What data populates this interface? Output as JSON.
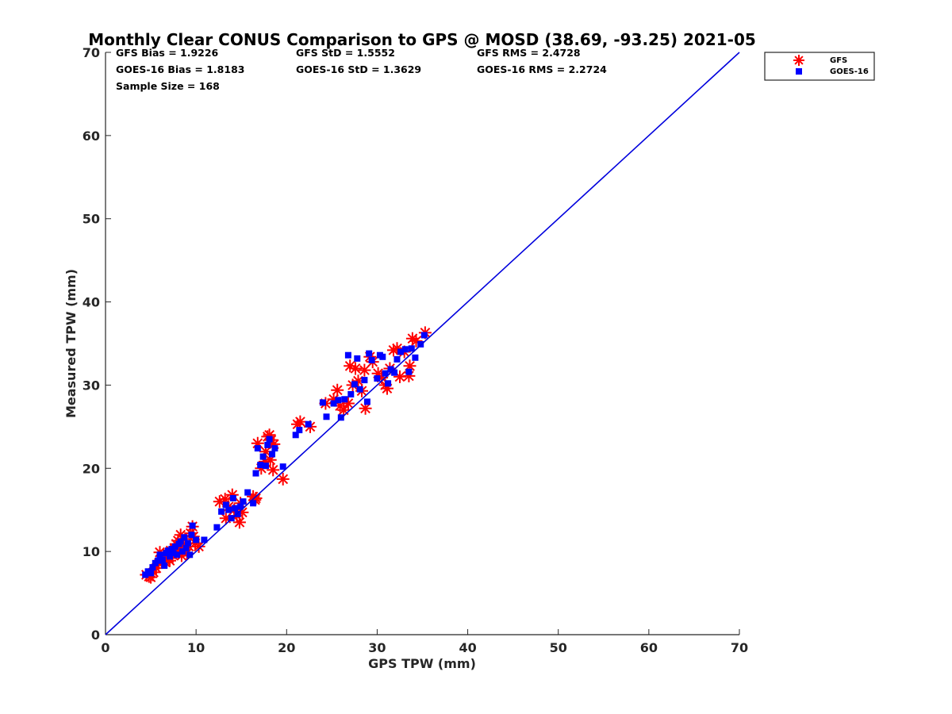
{
  "chart_data": {
    "type": "scatter",
    "title": "Monthly Clear CONUS Comparison to GPS @ MOSD (38.69, -93.25) 2021-05",
    "xlabel": "GPS TPW (mm)",
    "ylabel": "Measured TPW (mm)",
    "xlim": [
      0,
      70
    ],
    "ylim": [
      0,
      70
    ],
    "xticks": [
      "0",
      "10",
      "20",
      "30",
      "40",
      "50",
      "60",
      "70"
    ],
    "yticks": [
      "0",
      "10",
      "20",
      "30",
      "40",
      "50",
      "60",
      "70"
    ],
    "grid": false,
    "legend_position": "top-right outside",
    "stats": [
      [
        "GFS Bias = 1.9226",
        "GFS StD = 1.5552",
        "GFS RMS = 2.4728"
      ],
      [
        "GOES-16 Bias = 1.8183",
        "GOES-16 StD = 1.3629",
        "GOES-16 RMS = 2.2724"
      ],
      [
        "Sample Size = 168"
      ]
    ],
    "reference_line": {
      "x": [
        0,
        70
      ],
      "y": [
        0,
        70
      ],
      "color": "#0000dd"
    },
    "series": [
      {
        "name": "GFS",
        "marker": "asterisk",
        "color": "#ff0000",
        "points": [
          [
            4.5,
            7.2
          ],
          [
            4.8,
            7.0
          ],
          [
            5.0,
            6.9
          ],
          [
            5.3,
            7.5
          ],
          [
            5.6,
            8.0
          ],
          [
            5.9,
            8.6
          ],
          [
            6.2,
            9.1
          ],
          [
            6.4,
            9.5
          ],
          [
            6.6,
            8.7
          ],
          [
            6.8,
            9.8
          ],
          [
            7.0,
            9.2
          ],
          [
            7.2,
            10.1
          ],
          [
            7.4,
            9.6
          ],
          [
            7.6,
            10.4
          ],
          [
            7.8,
            10.9
          ],
          [
            8.0,
            11.3
          ],
          [
            8.2,
            10.2
          ],
          [
            8.4,
            9.5
          ],
          [
            8.6,
            10.8
          ],
          [
            8.8,
            11.5
          ],
          [
            9.0,
            9.8
          ],
          [
            9.2,
            10.6
          ],
          [
            9.4,
            12.2
          ],
          [
            9.6,
            13.0
          ],
          [
            9.9,
            11.0
          ],
          [
            10.3,
            10.6
          ],
          [
            7.1,
            8.9
          ],
          [
            6.0,
            9.9
          ],
          [
            8.3,
            12.0
          ],
          [
            9.7,
            11.8
          ],
          [
            12.6,
            16.0
          ],
          [
            13.2,
            16.3
          ],
          [
            13.6,
            15.4
          ],
          [
            14.0,
            16.8
          ],
          [
            14.2,
            15.0
          ],
          [
            14.5,
            14.3
          ],
          [
            14.8,
            13.5
          ],
          [
            15.1,
            14.7
          ],
          [
            13.3,
            14.0
          ],
          [
            14.9,
            15.8
          ],
          [
            16.3,
            16.6
          ],
          [
            16.6,
            16.4
          ],
          [
            16.5,
            16.2
          ],
          [
            16.8,
            23.0
          ],
          [
            17.2,
            20.0
          ],
          [
            17.6,
            20.8
          ],
          [
            17.9,
            23.8
          ],
          [
            18.1,
            24.0
          ],
          [
            18.3,
            23.4
          ],
          [
            18.6,
            22.9
          ],
          [
            18.2,
            21.0
          ],
          [
            18.5,
            19.8
          ],
          [
            19.6,
            18.7
          ],
          [
            17.7,
            22.0
          ],
          [
            21.2,
            25.3
          ],
          [
            21.5,
            25.6
          ],
          [
            22.6,
            25.0
          ],
          [
            24.3,
            27.8
          ],
          [
            25.2,
            28.3
          ],
          [
            25.6,
            29.4
          ],
          [
            25.9,
            27.5
          ],
          [
            26.3,
            27.0
          ],
          [
            26.8,
            27.8
          ],
          [
            27.0,
            32.3
          ],
          [
            27.3,
            30.0
          ],
          [
            27.6,
            32.0
          ],
          [
            27.9,
            30.5
          ],
          [
            28.3,
            29.3
          ],
          [
            28.7,
            27.2
          ],
          [
            28.6,
            31.8
          ],
          [
            29.2,
            33.4
          ],
          [
            29.5,
            32.8
          ],
          [
            30.1,
            31.4
          ],
          [
            30.5,
            30.9
          ],
          [
            30.9,
            30.0
          ],
          [
            31.1,
            29.6
          ],
          [
            31.4,
            32.0
          ],
          [
            31.8,
            34.2
          ],
          [
            32.2,
            34.4
          ],
          [
            32.5,
            31.0
          ],
          [
            33.0,
            34.0
          ],
          [
            33.5,
            31.1
          ],
          [
            33.6,
            32.3
          ],
          [
            33.9,
            35.6
          ],
          [
            34.3,
            35.3
          ],
          [
            35.3,
            36.3
          ]
        ]
      },
      {
        "name": "GOES-16",
        "marker": "square",
        "color": "#0000ff",
        "points": [
          [
            4.4,
            7.2
          ],
          [
            4.7,
            7.6
          ],
          [
            5.0,
            7.4
          ],
          [
            5.2,
            8.1
          ],
          [
            5.5,
            8.6
          ],
          [
            5.8,
            8.9
          ],
          [
            6.0,
            9.6
          ],
          [
            6.3,
            9.0
          ],
          [
            6.5,
            8.3
          ],
          [
            6.7,
            9.8
          ],
          [
            6.9,
            10.1
          ],
          [
            7.1,
            9.4
          ],
          [
            7.3,
            10.3
          ],
          [
            7.5,
            9.8
          ],
          [
            7.7,
            10.6
          ],
          [
            7.9,
            9.6
          ],
          [
            8.1,
            10.9
          ],
          [
            8.3,
            11.2
          ],
          [
            8.5,
            10.0
          ],
          [
            8.7,
            11.7
          ],
          [
            8.9,
            10.4
          ],
          [
            9.1,
            11.0
          ],
          [
            9.3,
            9.6
          ],
          [
            9.5,
            12.0
          ],
          [
            9.6,
            13.1
          ],
          [
            10.0,
            11.4
          ],
          [
            10.9,
            11.4
          ],
          [
            12.3,
            12.9
          ],
          [
            12.8,
            14.8
          ],
          [
            13.3,
            15.6
          ],
          [
            13.6,
            15.0
          ],
          [
            13.9,
            14.0
          ],
          [
            14.1,
            16.4
          ],
          [
            14.3,
            15.2
          ],
          [
            14.6,
            14.5
          ],
          [
            14.9,
            15.4
          ],
          [
            15.2,
            16.0
          ],
          [
            15.7,
            17.1
          ],
          [
            16.3,
            15.8
          ],
          [
            16.6,
            19.4
          ],
          [
            16.8,
            22.4
          ],
          [
            17.1,
            20.4
          ],
          [
            17.4,
            21.4
          ],
          [
            17.7,
            20.3
          ],
          [
            17.9,
            22.8
          ],
          [
            18.1,
            23.5
          ],
          [
            18.4,
            21.7
          ],
          [
            18.7,
            22.4
          ],
          [
            19.6,
            20.2
          ],
          [
            21.0,
            24.0
          ],
          [
            21.4,
            24.6
          ],
          [
            22.4,
            25.3
          ],
          [
            24.0,
            27.9
          ],
          [
            24.4,
            26.2
          ],
          [
            25.2,
            27.8
          ],
          [
            25.7,
            28.2
          ],
          [
            26.0,
            26.1
          ],
          [
            26.4,
            28.3
          ],
          [
            26.8,
            33.6
          ],
          [
            27.1,
            28.9
          ],
          [
            27.5,
            30.1
          ],
          [
            27.8,
            33.2
          ],
          [
            28.1,
            29.5
          ],
          [
            28.6,
            30.6
          ],
          [
            28.9,
            28.0
          ],
          [
            29.1,
            33.8
          ],
          [
            29.4,
            33.0
          ],
          [
            30.0,
            30.8
          ],
          [
            30.3,
            33.6
          ],
          [
            30.6,
            33.4
          ],
          [
            30.9,
            31.4
          ],
          [
            31.2,
            30.2
          ],
          [
            31.5,
            31.9
          ],
          [
            31.9,
            31.5
          ],
          [
            32.2,
            33.1
          ],
          [
            32.6,
            34.0
          ],
          [
            33.1,
            34.3
          ],
          [
            33.5,
            31.6
          ],
          [
            33.8,
            34.4
          ],
          [
            34.2,
            33.3
          ],
          [
            34.8,
            34.9
          ],
          [
            35.2,
            36.0
          ]
        ]
      }
    ]
  }
}
